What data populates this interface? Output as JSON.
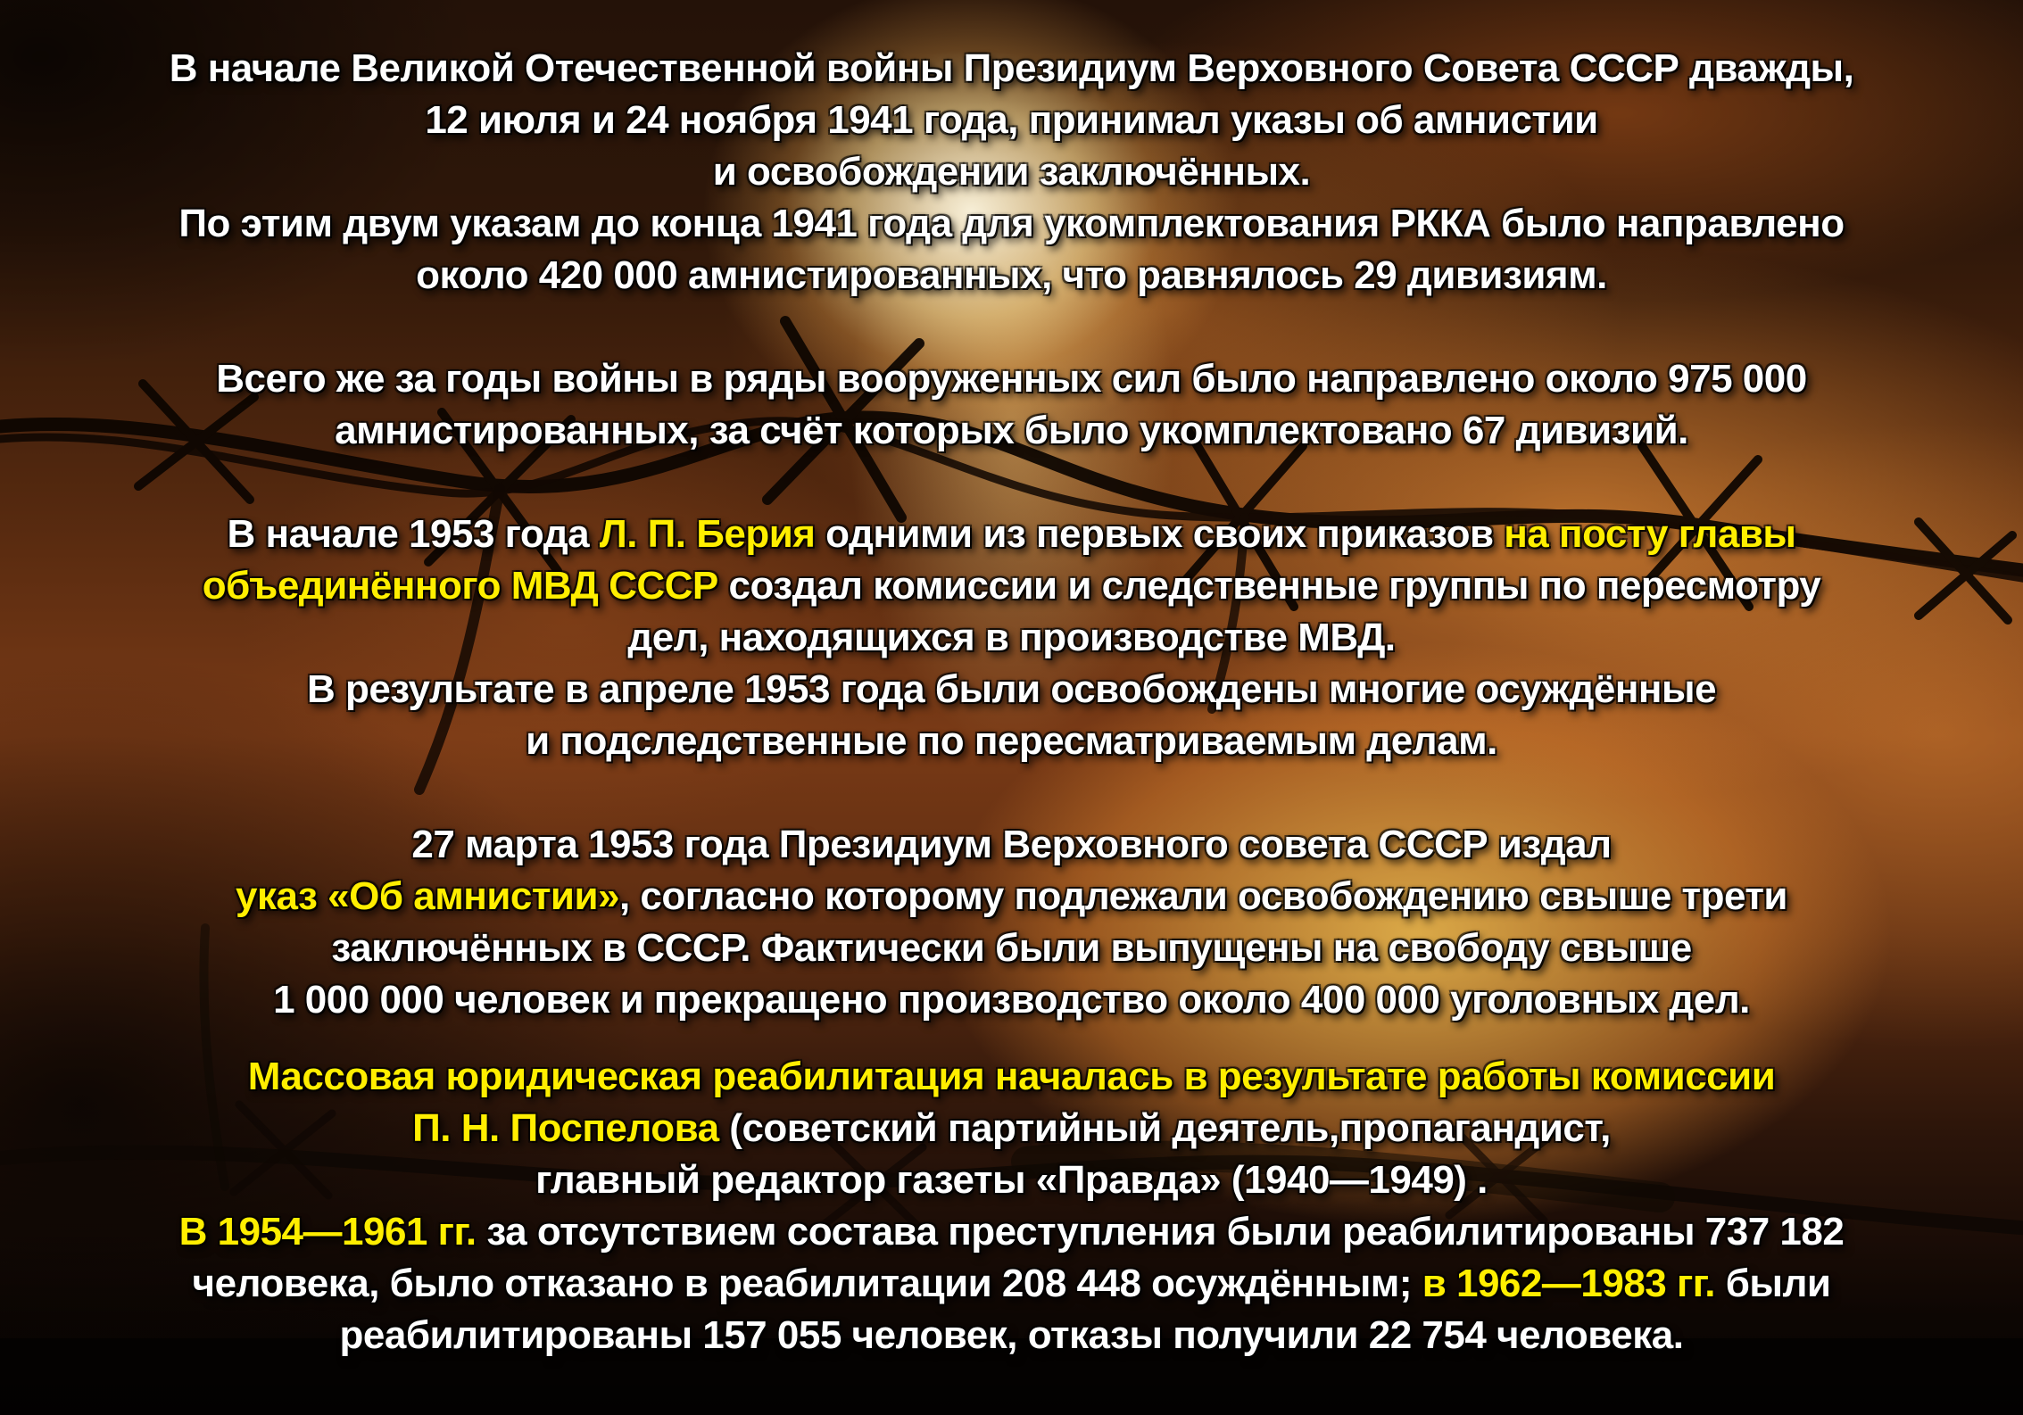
{
  "slide": {
    "language": "ru",
    "colors": {
      "text": "#ffffff",
      "highlight": "#ffee00",
      "shadow": "#000000",
      "background_dark": "#1d0e06",
      "background_fire": "#d9832e",
      "background_glow": "#ffe9b4"
    },
    "background_description": "barbed-wire-silhouette-over-fiery-sky",
    "lines": [
      {
        "segments": [
          {
            "text": "В начале Великой Отечественной войны Президиум Верховного Совета СССР дважды,",
            "color": "white"
          }
        ]
      },
      {
        "segments": [
          {
            "text": "12 июля и 24 ноября 1941 года, принимал указы об амнистии",
            "color": "white"
          }
        ]
      },
      {
        "segments": [
          {
            "text": "и освобождении заключённых.",
            "color": "white"
          }
        ]
      },
      {
        "segments": [
          {
            "text": "По этим двум указам до конца 1941 года для укомплектования РККА было направлено",
            "color": "white"
          }
        ]
      },
      {
        "segments": [
          {
            "text": "около 420 000 амнистированных, что равнялось 29 дивизиям.",
            "color": "white"
          }
        ]
      },
      {
        "blank": true
      },
      {
        "segments": [
          {
            "text": "Всего же за годы войны в ряды вооруженных сил было направлено около 975 000",
            "color": "white"
          }
        ]
      },
      {
        "segments": [
          {
            "text": "амнистированных, за счёт которых было укомплектовано 67 дивизий.",
            "color": "white"
          }
        ]
      },
      {
        "blank": true
      },
      {
        "segments": [
          {
            "text": "В начале 1953 года ",
            "color": "white"
          },
          {
            "text": "Л. П. Берия",
            "color": "yellow"
          },
          {
            "text": " одними из первых своих приказов ",
            "color": "white"
          },
          {
            "text": "на посту главы",
            "color": "yellow"
          }
        ]
      },
      {
        "segments": [
          {
            "text": "объединённого МВД СССР",
            "color": "yellow"
          },
          {
            "text": " создал комиссии и следственные группы по пересмотру",
            "color": "white"
          }
        ]
      },
      {
        "segments": [
          {
            "text": "дел, находящихся в производстве МВД.",
            "color": "white"
          }
        ]
      },
      {
        "segments": [
          {
            "text": "В результате в апреле 1953 года были освобождены многие осуждённые",
            "color": "white"
          }
        ]
      },
      {
        "segments": [
          {
            "text": "и подследственные по пересматриваемым делам.",
            "color": "white"
          }
        ]
      },
      {
        "blank": true
      },
      {
        "segments": [
          {
            "text": "27 марта 1953 года Президиум Верховного совета СССР издал",
            "color": "white"
          }
        ]
      },
      {
        "segments": [
          {
            "text": "указ «Об амнистии»",
            "color": "yellow"
          },
          {
            "text": ", согласно которому подлежали освобождению свыше трети",
            "color": "white"
          }
        ]
      },
      {
        "segments": [
          {
            "text": "заключённых в СССР. Фактически были выпущены на свободу свыше",
            "color": "white"
          }
        ]
      },
      {
        "segments": [
          {
            "text": "1 000 000 человек  и прекращено производство около 400 000 уголовных дел.",
            "color": "white"
          }
        ]
      },
      {
        "spacer": "half"
      },
      {
        "segments": [
          {
            "text": "Массовая юридическая реабилитация началась в результате работы комиссии",
            "color": "yellow"
          }
        ]
      },
      {
        "segments": [
          {
            "text": "П. Н. Поспелова ",
            "color": "yellow"
          },
          {
            "text": "(советский партийный деятель,пропагандист,",
            "color": "white"
          }
        ]
      },
      {
        "segments": [
          {
            "text": "главный редактор газеты «Правда» (1940—1949) .",
            "color": "white"
          }
        ]
      },
      {
        "segments": [
          {
            "text": "В 1954—1961 гг.",
            "color": "yellow"
          },
          {
            "text": " за отсутствием состава преступления были реабилитированы 737 182",
            "color": "white"
          }
        ]
      },
      {
        "segments": [
          {
            "text": "человека, было отказано в реабилитации 208 448 осуждённым; ",
            "color": "white"
          },
          {
            "text": "в 1962—1983 гг.",
            "color": "yellow"
          },
          {
            "text": " были",
            "color": "white"
          }
        ]
      },
      {
        "segments": [
          {
            "text": "реабилитированы 157 055 человек, отказы получили 22 754 человека.",
            "color": "white"
          }
        ]
      }
    ]
  }
}
